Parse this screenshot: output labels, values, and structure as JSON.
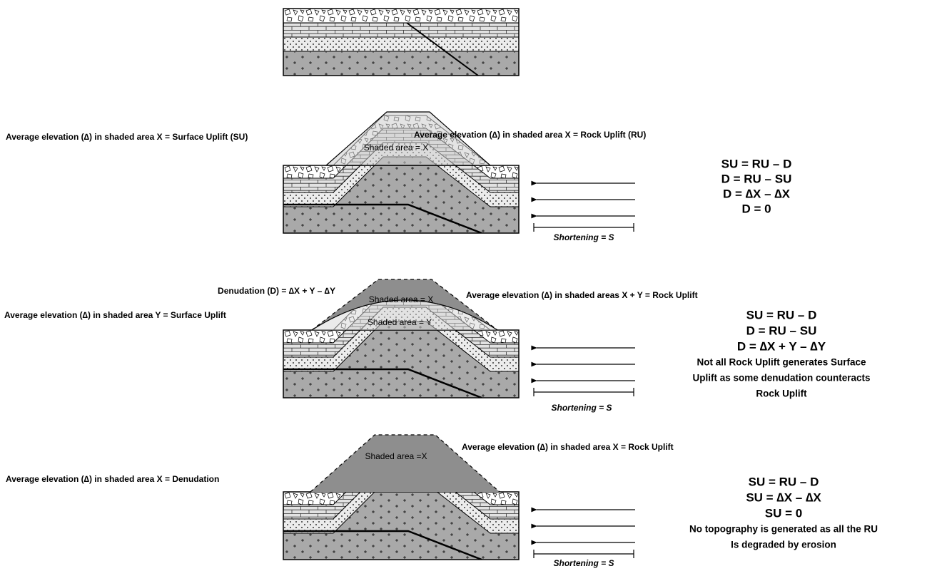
{
  "panels": [
    {
      "left_label": "Average elevation (∆) in shaded area X = Surface Uplift (SU)",
      "shaded_label": "Shaded area = X",
      "right_label": "Average elevation (∆) in shaded area X = Rock Uplift (RU)",
      "equations": [
        "SU = RU – D",
        "D = RU – SU",
        "D = ∆X – ∆X",
        "D = 0"
      ],
      "shortening": "Shortening = S"
    },
    {
      "top_label": "Denudation (D) = ∆X + Y – ∆Y",
      "shaded_label": "Shaded area = X",
      "right_label": "Average elevation (∆) in shaded areas X + Y = Rock Uplift",
      "left_label": "Average elevation (∆) in shaded area Y =  Surface Uplift",
      "shaded_label_y": "Shaded area = Y",
      "equations": [
        "SU = RU – D",
        "D = RU – SU",
        "D = ∆X + Y – ∆Y"
      ],
      "notes": [
        "Not all Rock Uplift generates Surface",
        "Uplift as some denudation counteracts",
        "Rock Uplift"
      ],
      "shortening": "Shortening = S"
    },
    {
      "shaded_label": "Shaded area =X",
      "right_label": "Average elevation (∆) in shaded area X = Rock Uplift",
      "left_label": "Average elevation (∆) in shaded area X =  Denudation",
      "equations": [
        "SU = RU – D",
        "SU = ∆X – ∆X",
        "SU = 0"
      ],
      "notes": [
        "No topography is generated as all the RU",
        "Is degraded by erosion"
      ],
      "shortening": "Shortening = S"
    }
  ]
}
